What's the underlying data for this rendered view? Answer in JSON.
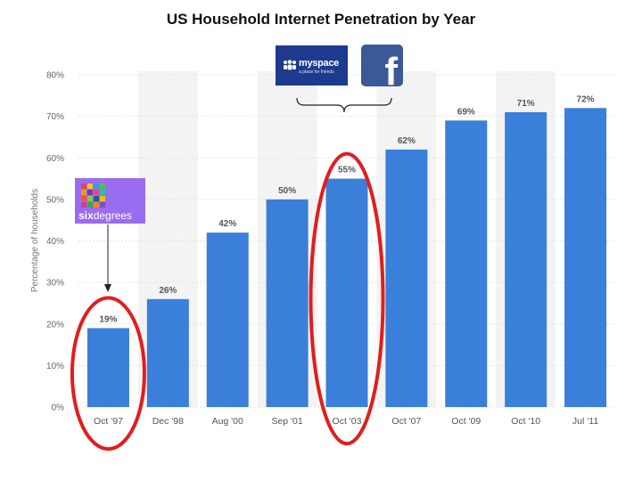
{
  "chart_data": {
    "type": "bar",
    "title": "US Household Internet Penetration by Year",
    "ylabel": "Percentage of households",
    "xlabel": "",
    "categories": [
      "Oct '97",
      "Dec '98",
      "Aug '00",
      "Sep '01",
      "Oct '03",
      "Oct '07",
      "Oct '09",
      "Oct '10",
      "Jul '11"
    ],
    "values": [
      19,
      26,
      42,
      50,
      55,
      62,
      69,
      71,
      72
    ],
    "value_labels": [
      "19%",
      "26%",
      "42%",
      "50%",
      "55%",
      "62%",
      "69%",
      "71%",
      "72%"
    ],
    "ylim": [
      0,
      80
    ],
    "yticks": [
      "0%",
      "10%",
      "20%",
      "30%",
      "40%",
      "50%",
      "60%",
      "70%",
      "80%"
    ],
    "grid": true,
    "bar_color": "#3a7fd9",
    "highlight_color": "#e01e1e",
    "highlighted_categories": [
      "Oct '97",
      "Oct '03"
    ]
  },
  "annotations": {
    "myspace": {
      "name": "myspace",
      "tagline": "a place for friends",
      "color": "#1d3a8f"
    },
    "facebook": {
      "glyph": "f",
      "color": "#3b5998"
    },
    "sixdegrees": {
      "prefix": "six",
      "suffix": "degrees",
      "color": "#9a6cf0"
    }
  }
}
